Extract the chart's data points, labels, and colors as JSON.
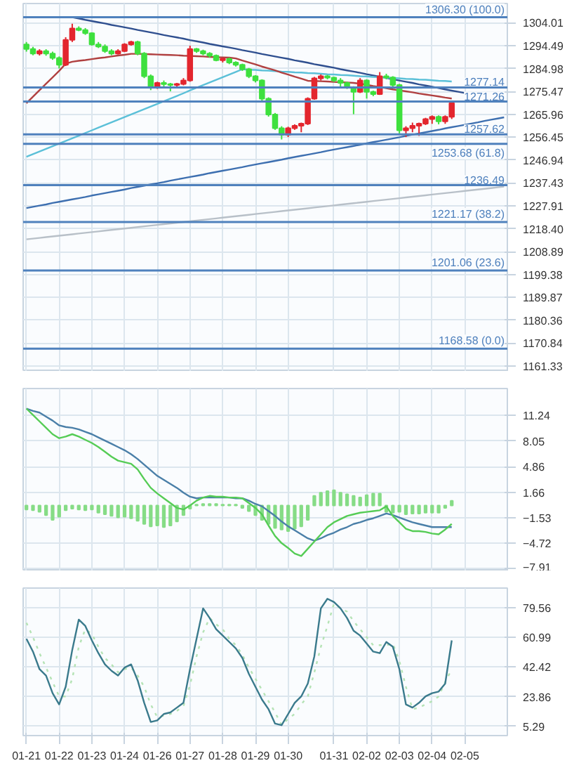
{
  "chart_data": [
    {
      "type": "candlestick",
      "grid": true,
      "tick_labels": "y",
      "ylim": [
        1159,
        1312
      ],
      "categories": [
        null,
        null,
        null,
        null,
        null,
        null,
        null,
        null,
        null,
        null,
        null,
        null,
        null,
        null,
        null,
        null,
        null,
        null,
        null,
        null,
        null,
        null,
        null,
        null,
        null,
        null,
        null,
        null,
        null,
        null,
        null,
        null,
        null,
        null,
        null,
        null,
        null,
        null,
        null,
        null,
        null,
        null,
        null,
        null,
        null,
        null,
        null,
        null,
        null,
        null,
        null,
        null,
        null,
        null,
        null,
        null,
        null,
        null,
        null,
        null,
        null,
        null,
        null,
        null,
        null,
        null,
        null,
        null,
        null,
        null,
        null,
        null,
        null,
        null
      ],
      "yticks": [
        1304.01,
        1294.49,
        1284.98,
        1275.47,
        1265.96,
        1256.45,
        1246.94,
        1237.43,
        1227.91,
        {
          "value": 1218.4,
          "label": "1218.40"
        },
        1208.89,
        1199.38,
        1189.87,
        1180.36,
        1170.84,
        1161.33
      ],
      "ohlc": [
        [
          1295.0,
          1296.0,
          1292.0,
          1293.1
        ],
        [
          1293.1,
          1294.0,
          1290.5,
          1291.2
        ],
        [
          1291.2,
          1293.0,
          1290.4,
          1292.2
        ],
        [
          1292.2,
          1293.0,
          1290.3,
          1291.2
        ],
        [
          1291.2,
          1292.0,
          1288.6,
          1289.4
        ],
        [
          1289.4,
          1290.0,
          1285.0,
          1286.5
        ],
        [
          1286.5,
          1298.0,
          1286.0,
          1296.9
        ],
        [
          1296.9,
          1303.6,
          1296.0,
          1301.6
        ],
        [
          1301.6,
          1302.5,
          1300.5,
          1301.0
        ],
        [
          1301.0,
          1301.8,
          1299.0,
          1299.7
        ],
        [
          1299.7,
          1300.0,
          1294.5,
          1295.0
        ],
        [
          1295.0,
          1296.0,
          1293.5,
          1294.1
        ],
        [
          1294.1,
          1295.0,
          1291.5,
          1292.2
        ],
        [
          1292.2,
          1293.0,
          1290.5,
          1291.2
        ],
        [
          1291.2,
          1293.0,
          1290.8,
          1292.2
        ],
        [
          1292.2,
          1295.5,
          1291.8,
          1295.0
        ],
        [
          1295.0,
          1296.5,
          1294.5,
          1296.0
        ],
        [
          1296.0,
          1296.5,
          1290.5,
          1291.2
        ],
        [
          1291.2,
          1291.8,
          1281.0,
          1281.8
        ],
        [
          1281.8,
          1282.5,
          1276.0,
          1277.1
        ],
        [
          1277.1,
          1279.5,
          1276.5,
          1279.0
        ],
        [
          1279.0,
          1280.0,
          1277.5,
          1278.5
        ],
        [
          1278.5,
          1279.0,
          1275.5,
          1278.1
        ],
        [
          1278.1,
          1279.0,
          1277.0,
          1278.6
        ],
        [
          1278.6,
          1281.0,
          1278.0,
          1280.0
        ],
        [
          1280.0,
          1294.5,
          1279.5,
          1293.1
        ],
        [
          1293.1,
          1293.5,
          1291.5,
          1292.2
        ],
        [
          1292.2,
          1292.8,
          1290.5,
          1291.2
        ],
        [
          1291.2,
          1291.8,
          1289.5,
          1290.3
        ],
        [
          1290.3,
          1290.8,
          1288.0,
          1288.4
        ],
        [
          1288.4,
          1289.5,
          1287.5,
          1289.0
        ],
        [
          1289.0,
          1289.5,
          1286.8,
          1287.5
        ],
        [
          1287.5,
          1288.0,
          1285.8,
          1286.5
        ],
        [
          1286.5,
          1287.0,
          1284.0,
          1284.7
        ],
        [
          1284.7,
          1285.2,
          1281.0,
          1281.8
        ],
        [
          1281.8,
          1282.2,
          1279.2,
          1280.0
        ],
        [
          1280.0,
          1280.5,
          1271.5,
          1272.4
        ],
        [
          1272.4,
          1273.0,
          1265.0,
          1265.9
        ],
        [
          1265.9,
          1266.5,
          1259.5,
          1260.2
        ],
        [
          1260.2,
          1261.0,
          1255.5,
          1257.4
        ],
        [
          1257.4,
          1260.8,
          1256.5,
          1260.2
        ],
        [
          1260.2,
          1261.8,
          1259.5,
          1261.2
        ],
        [
          1261.2,
          1262.5,
          1258.5,
          1262.1
        ],
        [
          1262.1,
          1273.0,
          1261.5,
          1272.4
        ],
        [
          1272.4,
          1281.5,
          1272.0,
          1280.9
        ],
        [
          1280.9,
          1282.5,
          1280.0,
          1281.8
        ],
        [
          1281.8,
          1282.3,
          1280.5,
          1281.2
        ],
        [
          1281.2,
          1281.6,
          1279.4,
          1280.0
        ],
        [
          1280.0,
          1281.0,
          1277.5,
          1279.0
        ],
        [
          1279.0,
          1279.5,
          1276.5,
          1277.1
        ],
        [
          1277.1,
          1277.6,
          1266.0,
          1275.3
        ],
        [
          1275.3,
          1281.0,
          1274.8,
          1280.0
        ],
        [
          1280.0,
          1280.5,
          1272.5,
          1275.3
        ],
        [
          1275.3,
          1275.8,
          1273.5,
          1274.3
        ],
        [
          1274.3,
          1283.5,
          1274.0,
          1281.8
        ],
        [
          1281.8,
          1282.8,
          1280.5,
          1281.3
        ],
        [
          1281.3,
          1281.8,
          1277.5,
          1278.1
        ],
        [
          1278.1,
          1278.6,
          1258.0,
          1259.3
        ],
        [
          1259.3,
          1261.0,
          1256.5,
          1260.2
        ],
        [
          1260.2,
          1262.5,
          1258.5,
          1261.2
        ],
        [
          1261.2,
          1262.5,
          1257.0,
          1262.1
        ],
        [
          1262.1,
          1264.5,
          1261.5,
          1264.0
        ],
        [
          1264.0,
          1265.5,
          1262.0,
          1264.9
        ],
        [
          1264.9,
          1265.5,
          1261.8,
          1263.0
        ],
        [
          1263.0,
          1265.5,
          1262.0,
          1264.9
        ],
        [
          1264.9,
          1271.0,
          1264.0,
          1270.6
        ],
        null,
        null,
        null,
        null,
        null,
        null,
        null,
        null
      ],
      "colors": [
        "#3ee03e",
        "#3ee03e",
        "#e3262e",
        "#3ee03e",
        "#3ee03e",
        "#3ee03e",
        "#e3262e",
        "#e3262e",
        "#3ee03e",
        "#3ee03e",
        "#3ee03e",
        "#3ee03e",
        "#3ee03e",
        "#3ee03e",
        "#e3262e",
        "#e3262e",
        "#e3262e",
        "#3ee03e",
        "#3ee03e",
        "#3ee03e",
        "#e3262e",
        "#3ee03e",
        "#3ee03e",
        "#e3262e",
        "#e3262e",
        "#e3262e",
        "#3ee03e",
        "#3ee03e",
        "#3ee03e",
        "#3ee03e",
        "#e3262e",
        "#3ee03e",
        "#3ee03e",
        "#3ee03e",
        "#3ee03e",
        "#3ee03e",
        "#3ee03e",
        "#3ee03e",
        "#3ee03e",
        "#3ee03e",
        "#e3262e",
        "#e3262e",
        "#e3262e",
        "#e3262e",
        "#e3262e",
        "#e3262e",
        "#3ee03e",
        "#3ee03e",
        "#3ee03e",
        "#3ee03e",
        "#3ee03e",
        "#e3262e",
        "#3ee03e",
        "#3ee03e",
        "#e3262e",
        "#3ee03e",
        "#3ee03e",
        "#3ee03e",
        "#e3262e",
        "#e3262e",
        "#e3262e",
        "#e3262e",
        "#e3262e",
        "#3ee03e",
        "#e3262e",
        "#e3262e",
        null,
        null,
        null,
        null,
        null,
        null,
        null,
        null
      ],
      "series": [
        {
          "type": "line",
          "color": "#2f4f8f",
          "values": [
            null,
            null,
            null,
            null,
            null,
            null,
            null,
            1306.3,
            1305.8,
            1305.2,
            1304.7,
            1304.2,
            1303.7,
            1303.1,
            1302.6,
            1302.1,
            1301.6,
            1301.0,
            1300.5,
            1300.0,
            1299.5,
            1298.9,
            1298.4,
            1297.9,
            1297.4,
            1296.8,
            1296.3,
            1295.8,
            1295.2,
            1294.7,
            1294.2,
            1293.7,
            1293.2,
            1292.6,
            1292.1,
            1291.6,
            1291.0,
            1290.5,
            1290.0,
            1289.5,
            1289.0,
            1288.4,
            1287.9,
            1287.4,
            1286.8,
            1286.3,
            1285.8,
            1285.3,
            1284.7,
            1284.2,
            1283.7,
            1283.2,
            1282.6,
            1282.1,
            1281.6,
            1281.1,
            1280.5,
            1280.0,
            1279.5,
            1279.0,
            1278.4,
            1277.9,
            1277.4,
            1276.9,
            1276.3,
            1275.8,
            1275.3,
            1274.8,
            1274.2,
            1273.7,
            1273.2,
            1272.7,
            1272.1,
            1271.6
          ]
        },
        {
          "type": "line",
          "color": "#3d6fb0",
          "values": [
            1227.0,
            1227.5,
            1228.0,
            1228.5,
            1229.1,
            1229.6,
            1230.1,
            1230.6,
            1231.1,
            1231.6,
            1232.2,
            1232.7,
            1233.2,
            1233.7,
            1234.2,
            1234.7,
            1235.3,
            1235.8,
            1236.3,
            1236.8,
            1237.3,
            1237.8,
            1238.4,
            1238.9,
            1239.4,
            1239.9,
            1240.4,
            1240.9,
            1241.5,
            1242.0,
            1242.5,
            1243.0,
            1243.5,
            1244.0,
            1244.6,
            1245.1,
            1245.6,
            1246.1,
            1246.6,
            1247.1,
            1247.7,
            1248.2,
            1248.7,
            1249.2,
            1249.7,
            1250.2,
            1250.8,
            1251.3,
            1251.8,
            1252.3,
            1252.8,
            1253.3,
            1253.9,
            1254.4,
            1254.9,
            1255.4,
            1255.9,
            1256.4,
            1257.0,
            1257.5,
            1258.0,
            1258.5,
            1259.0,
            1259.5,
            1260.1,
            1260.6,
            1261.1,
            1261.6,
            1262.1,
            1262.6,
            1263.2,
            1263.7,
            1264.2,
            1264.7
          ]
        },
        {
          "type": "line",
          "color": "#b8c0c8",
          "values": [
            1214.0,
            1214.3,
            1214.6,
            1214.9,
            1215.2,
            1215.5,
            1215.8,
            1216.1,
            1216.4,
            1216.7,
            1217.0,
            1217.3,
            1217.6,
            1217.9,
            1218.2,
            1218.5,
            1218.8,
            1219.1,
            1219.4,
            1219.7,
            1220.0,
            1220.3,
            1220.6,
            1220.9,
            1221.2,
            1221.5,
            1221.8,
            1222.1,
            1222.4,
            1222.7,
            1223.0,
            1223.3,
            1223.6,
            1223.9,
            1224.2,
            1224.5,
            1224.8,
            1225.1,
            1225.4,
            1225.7,
            1226.0,
            1226.3,
            1226.6,
            1226.9,
            1227.2,
            1227.5,
            1227.8,
            1228.1,
            1228.4,
            1228.7,
            1229.0,
            1229.3,
            1229.6,
            1229.9,
            1230.2,
            1230.5,
            1230.8,
            1231.1,
            1231.4,
            1231.7,
            1232.0,
            1232.3,
            1232.6,
            1232.9,
            1233.2,
            1233.5,
            1233.8,
            1234.1,
            1234.4,
            1234.7,
            1235.0,
            1235.3,
            1235.6,
            1235.9
          ]
        },
        {
          "type": "line",
          "color": "#5bc0d8",
          "values": [
            1248.3,
            1249.4,
            1250.5,
            1251.6,
            1252.7,
            1253.8,
            1254.9,
            1256.0,
            1257.1,
            1258.2,
            1259.3,
            1260.4,
            1261.5,
            1262.6,
            1263.7,
            1264.8,
            1265.9,
            1267.0,
            1268.1,
            1269.2,
            1270.3,
            1271.4,
            1272.5,
            1273.6,
            1274.7,
            1275.9,
            1277.0,
            1278.1,
            1279.2,
            1280.3,
            1281.4,
            1282.5,
            1283.6,
            1284.7,
            1284.5,
            1284.4,
            1284.2,
            1284.1,
            1283.9,
            1283.7,
            1283.6,
            1283.4,
            1283.3,
            1283.1,
            1283.0,
            1282.8,
            1282.6,
            1282.5,
            1282.3,
            1282.2,
            1282.0,
            1281.8,
            1281.7,
            1281.5,
            1281.4,
            1281.2,
            1281.1,
            1280.9,
            1280.7,
            1280.6,
            1280.4,
            1280.3,
            1280.1,
            1279.9,
            1279.8,
            1279.6,
            null,
            null,
            null,
            null,
            null,
            null,
            null,
            null
          ]
        },
        {
          "type": "line",
          "color": "#b04040",
          "values": [
            1270.6,
            1273.3,
            1276.0,
            1278.7,
            1281.3,
            1284.0,
            1287.0,
            1287.8,
            1288.2,
            1288.5,
            1288.9,
            1289.3,
            1289.6,
            1290.0,
            1290.4,
            1290.7,
            1291.1,
            1291.1,
            1291.0,
            1290.9,
            1290.8,
            1290.7,
            1290.6,
            1290.5,
            1290.3,
            1290.2,
            1290.1,
            1290.0,
            1289.8,
            1289.7,
            1289.6,
            1289.5,
            1289.2,
            1288.3,
            1287.5,
            1286.7,
            1285.8,
            1285.0,
            1284.2,
            1283.3,
            1282.5,
            1281.6,
            1280.8,
            1279.9,
            1279.8,
            1279.7,
            1279.6,
            1279.4,
            1279.3,
            1279.2,
            1279.0,
            1278.7,
            1278.2,
            1277.7,
            1277.3,
            1276.8,
            1276.3,
            1275.9,
            1275.5,
            1275.1,
            1274.6,
            1274.2,
            1273.8,
            1273.4,
            1272.9,
            1272.5,
            null,
            null,
            null,
            null,
            null,
            null,
            null,
            null
          ]
        }
      ],
      "ref_lines": [
        {
          "axis": "y",
          "value": 1306.3,
          "label": "1306.30 (100.0)",
          "color": "#4f81bd"
        },
        {
          "axis": "y",
          "value": 1277.14,
          "label": "1277.14",
          "color": "#4f81bd"
        },
        {
          "axis": "y",
          "value": 1271.26,
          "label": "1271.26",
          "color": "#4f81bd"
        },
        {
          "axis": "y",
          "value": 1257.62,
          "label": "1257.62",
          "color": "#4f81bd"
        },
        {
          "axis": "y",
          "value": 1253.68,
          "label": "1253.68 (61.8)",
          "color": "#4f81bd"
        },
        {
          "axis": "y",
          "value": 1236.49,
          "label": "1236.49",
          "color": "#4f81bd"
        },
        {
          "axis": "y",
          "value": 1221.17,
          "label": "1221.17 (38.2)",
          "color": "#4f81bd"
        },
        {
          "axis": "y",
          "value": 1201.06,
          "label": "1201.06 (23.6)",
          "color": "#4f81bd"
        },
        {
          "axis": "y",
          "value": 1168.58,
          "label": "1168.58 (0.0)",
          "color": "#4f81bd"
        }
      ]
    },
    {
      "type": "bar",
      "grid": true,
      "tick_labels": "y",
      "ylim": [
        -8.2,
        14.6
      ],
      "categories": [
        null,
        null,
        null,
        null,
        null,
        null,
        null,
        null,
        null,
        null,
        null,
        null,
        null,
        null,
        null,
        null,
        null,
        null,
        null,
        null,
        null,
        null,
        null,
        null,
        null,
        null,
        null,
        null,
        null,
        null,
        null,
        null,
        null,
        null,
        null,
        null,
        null,
        null,
        null,
        null,
        null,
        null,
        null,
        null,
        null,
        null,
        null,
        null,
        null,
        null,
        null,
        null,
        null,
        null,
        null,
        null,
        null,
        null,
        null,
        null,
        null,
        null,
        null,
        null,
        null,
        null,
        null,
        null,
        null,
        null,
        null,
        null,
        null,
        null
      ],
      "yticks": [
        11.24,
        8.05,
        4.86,
        1.66,
        -1.53,
        -4.72,
        -7.91
      ],
      "series": [
        {
          "type": "bar",
          "color": "#86dc86",
          "values": [
            -0.5,
            -0.6,
            -0.8,
            -1.2,
            -1.8,
            -1.4,
            -0.6,
            -0.4,
            -0.5,
            -0.6,
            -0.5,
            -0.9,
            -1.1,
            -1.3,
            -1.5,
            -1.4,
            -1.6,
            -1.9,
            -2.3,
            -2.6,
            -2.5,
            -2.7,
            -2.5,
            -2.0,
            -1.2,
            -0.4,
            0.1,
            0.2,
            0.2,
            0.2,
            0.1,
            0.1,
            0.1,
            -0.3,
            -0.7,
            -1.2,
            -1.8,
            -2.3,
            -2.8,
            -3.0,
            -3.2,
            -2.9,
            -2.6,
            -1.8,
            1.2,
            1.6,
            1.8,
            1.9,
            1.6,
            1.4,
            1.2,
            1.0,
            1.3,
            1.5,
            1.5,
            -0.8,
            -0.9,
            -0.8,
            -1.1,
            -1.0,
            -1.0,
            -0.9,
            -0.9,
            -0.9,
            -0.3,
            0.6,
            null,
            null,
            null,
            null,
            null,
            null,
            null,
            null
          ]
        },
        {
          "type": "line",
          "color": "#4a7fa8",
          "values": [
            12.1,
            11.8,
            11.6,
            11.1,
            10.6,
            10.0,
            9.8,
            9.7,
            9.5,
            9.2,
            8.9,
            8.5,
            8.1,
            7.7,
            7.3,
            6.9,
            6.4,
            5.8,
            5.1,
            4.4,
            3.7,
            3.2,
            2.7,
            2.2,
            1.6,
            1.1,
            0.9,
            1.0,
            1.0,
            1.0,
            1.0,
            1.0,
            0.9,
            0.9,
            0.6,
            0.2,
            -0.1,
            -0.7,
            -1.3,
            -2.0,
            -2.6,
            -3.1,
            -3.6,
            -4.1,
            -4.4,
            -4.1,
            -3.7,
            -3.4,
            -3.0,
            -2.7,
            -2.3,
            -2.1,
            -1.8,
            -1.6,
            -1.3,
            -1.0,
            -1.2,
            -1.5,
            -1.8,
            -2.1,
            -2.3,
            -2.5,
            -2.7,
            -2.7,
            -2.7,
            -2.7,
            null,
            null,
            null,
            null,
            null,
            null,
            null,
            null
          ]
        },
        {
          "type": "line",
          "color": "#55cc55",
          "values": [
            12.1,
            11.3,
            10.5,
            9.7,
            8.9,
            8.4,
            8.6,
            8.9,
            8.6,
            8.2,
            7.8,
            7.3,
            6.7,
            6.1,
            5.6,
            5.4,
            5.2,
            4.5,
            3.3,
            2.2,
            1.5,
            0.9,
            0.3,
            -0.3,
            -0.5,
            0.0,
            0.6,
            1.0,
            1.2,
            1.1,
            1.1,
            1.0,
            1.0,
            0.9,
            0.3,
            -0.3,
            -1.1,
            -2.5,
            -3.8,
            -4.7,
            -5.3,
            -6.0,
            -6.3,
            -5.4,
            -4.5,
            -3.6,
            -2.7,
            -2.1,
            -1.7,
            -1.3,
            -1.1,
            -0.9,
            -0.8,
            -0.7,
            -0.6,
            -0.1,
            -1.3,
            -2.1,
            -2.9,
            -3.2,
            -3.2,
            -3.3,
            -3.5,
            -3.6,
            -3.0,
            -2.3,
            null,
            null,
            null,
            null,
            null,
            null,
            null,
            null
          ]
        }
      ]
    },
    {
      "type": "line",
      "grid": true,
      "ylim": [
        -0.5,
        91.7
      ],
      "categories": [
        "01-21",
        null,
        null,
        null,
        null,
        "01-22",
        null,
        null,
        null,
        null,
        "01-23",
        null,
        null,
        null,
        null,
        "01-24",
        null,
        null,
        null,
        null,
        "01-26",
        null,
        null,
        null,
        null,
        "01-27",
        null,
        null,
        null,
        null,
        "01-28",
        null,
        null,
        null,
        null,
        "01-29",
        null,
        null,
        null,
        null,
        "01-30",
        null,
        null,
        null,
        null,
        null,
        null,
        "01-31",
        null,
        null,
        null,
        null,
        "02-02",
        null,
        null,
        null,
        null,
        "02-03",
        null,
        null,
        null,
        null,
        "02-04",
        null,
        null,
        null,
        null,
        "02-05",
        null,
        null,
        null,
        null,
        null,
        null
      ],
      "yticks": [
        79.56,
        60.99,
        42.42,
        23.86,
        5.29
      ],
      "series": [
        {
          "color": "#b5e3b5",
          "line_style": "dotted",
          "values": [
            70,
            61,
            51,
            42,
            33,
            24,
            24,
            35,
            55,
            66,
            63,
            55,
            48,
            44,
            39,
            41,
            42,
            37,
            30,
            19,
            11,
            12,
            13,
            15,
            18,
            31,
            49,
            64,
            73,
            69,
            66,
            60,
            56,
            50,
            42,
            35,
            28,
            21,
            14,
            6,
            10,
            13,
            19,
            24,
            39,
            55,
            68,
            82,
            79,
            77,
            71,
            66,
            61,
            56,
            56,
            56,
            57,
            46,
            30,
            16,
            17,
            19,
            21,
            24,
            33,
            41,
            null,
            null,
            null,
            null,
            null,
            null,
            null,
            null
          ]
        },
        {
          "color": "#3a7a8c",
          "values": [
            60,
            52,
            41,
            37,
            26,
            19,
            30,
            53,
            72,
            68,
            59,
            51,
            44,
            40,
            37,
            42,
            44,
            34,
            20,
            8,
            9,
            13,
            14,
            17,
            20,
            41,
            60,
            79,
            73,
            66,
            62,
            58,
            54,
            48,
            38,
            30,
            22,
            16,
            7,
            6,
            13,
            20,
            24,
            32,
            49,
            79,
            85,
            83,
            79,
            73,
            65,
            62,
            57,
            52,
            51,
            58,
            55,
            41,
            19,
            17,
            20,
            24,
            26,
            27,
            32,
            59,
            null,
            null,
            null,
            null,
            null,
            null,
            null,
            null
          ]
        }
      ]
    }
  ]
}
